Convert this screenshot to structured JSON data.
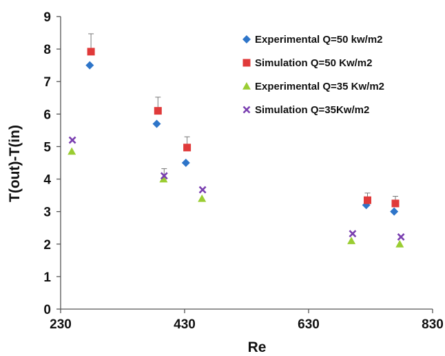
{
  "chart_data": {
    "type": "scatter",
    "title": "",
    "xlabel": "Re",
    "ylabel": "T(out)-T(in)",
    "xlim": [
      230,
      830
    ],
    "ylim": [
      0,
      9
    ],
    "xticks": [
      230,
      430,
      630,
      830
    ],
    "yticks": [
      0,
      1,
      2,
      3,
      4,
      5,
      6,
      7,
      8,
      9
    ],
    "grid": false,
    "legend_position": "top-right",
    "series": [
      {
        "name": "Experimental Q=50 kw/m2",
        "marker": "diamond",
        "color": "#2e75c9",
        "x": [
          277,
          385,
          432,
          723,
          768
        ],
        "y": [
          7.5,
          5.7,
          4.5,
          3.2,
          3.0
        ]
      },
      {
        "name": "Simulation    Q=50 Kw/m2",
        "marker": "square",
        "color": "#e03a3a",
        "x": [
          279,
          387,
          434,
          725,
          770
        ],
        "y": [
          7.92,
          6.1,
          4.97,
          3.35,
          3.25
        ],
        "error_plus": [
          0.55,
          0.42,
          0.33,
          0.22,
          0.22
        ]
      },
      {
        "name": "Experimental  Q=35 Kw/m2",
        "marker": "triangle",
        "color": "#9acd32",
        "x": [
          248,
          396,
          458,
          699,
          777
        ],
        "y": [
          4.85,
          4.0,
          3.4,
          2.1,
          2.0
        ]
      },
      {
        "name": "Simulation    Q=35Kw/m2",
        "marker": "x",
        "color": "#7a3fb0",
        "x": [
          249,
          397,
          459,
          701,
          779
        ],
        "y": [
          5.2,
          4.1,
          3.67,
          2.32,
          2.22
        ],
        "error_plus": [
          0.0,
          0.22,
          0.0,
          0.0,
          0.0
        ]
      }
    ]
  }
}
